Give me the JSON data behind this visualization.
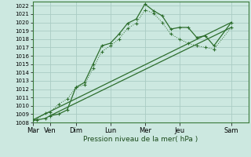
{
  "background_color": "#cce8e0",
  "grid_color": "#aaccc4",
  "line_color": "#2d6e2d",
  "ylabel": "Pression niveau de la mer( hPa )",
  "ylim": [
    1008,
    1022.5
  ],
  "ytick_min": 1008,
  "ytick_max": 1022,
  "day_labels": [
    "Mar",
    "Ven",
    "Dim",
    "Lun",
    "Mer",
    "Jeu",
    "Sam"
  ],
  "day_positions": [
    0,
    2,
    5,
    9,
    13,
    17,
    23
  ],
  "xlim": [
    0,
    25
  ],
  "series_main": {
    "x": [
      0,
      0.5,
      1.5,
      2,
      3,
      4,
      5,
      6,
      7,
      8,
      9,
      10,
      11,
      12,
      13,
      14,
      15,
      16,
      17,
      18,
      19,
      20,
      21,
      23
    ],
    "y": [
      1008.3,
      1008.3,
      1008.5,
      1008.8,
      1009.0,
      1009.5,
      1012.2,
      1012.8,
      1015.0,
      1017.2,
      1017.5,
      1018.6,
      1019.9,
      1020.4,
      1022.2,
      1021.4,
      1020.8,
      1019.2,
      1019.4,
      1019.4,
      1018.2,
      1018.4,
      1017.2,
      1020.0
    ]
  },
  "series_dotted": {
    "x": [
      0,
      0.5,
      1.5,
      2,
      3,
      4,
      5,
      6,
      7,
      8,
      9,
      10,
      11,
      12,
      13,
      14,
      15,
      16,
      17,
      18,
      19,
      20,
      21,
      23
    ],
    "y": [
      1008.3,
      1008.4,
      1009.1,
      1009.2,
      1010.2,
      1010.8,
      1012.2,
      1012.5,
      1014.5,
      1016.5,
      1017.2,
      1018.0,
      1019.3,
      1019.9,
      1021.5,
      1021.1,
      1020.0,
      1018.6,
      1018.0,
      1017.5,
      1017.2,
      1017.0,
      1016.8,
      1019.4
    ]
  },
  "series_linear1": {
    "x": [
      0,
      23
    ],
    "y": [
      1008.3,
      1020.0
    ]
  },
  "series_linear2": {
    "x": [
      2,
      23
    ],
    "y": [
      1008.8,
      1019.4
    ]
  }
}
